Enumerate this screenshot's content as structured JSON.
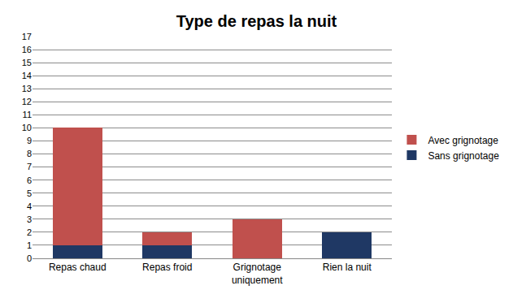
{
  "chart_data": {
    "type": "bar",
    "title": "Type de repas la nuit",
    "categories": [
      "Repas chaud",
      "Repas froid",
      "Grignotage uniquement",
      "Rien la nuit"
    ],
    "series": [
      {
        "name": "Sans grignotage",
        "color": "#1f3864",
        "values": [
          1,
          1,
          0,
          2
        ]
      },
      {
        "name": "Avec grignotage",
        "color": "#c0504d",
        "values": [
          9,
          1,
          3,
          0
        ]
      }
    ],
    "stacked": true,
    "ylim": [
      0,
      17
    ],
    "yticks": [
      0,
      1,
      2,
      3,
      4,
      5,
      6,
      7,
      8,
      9,
      10,
      11,
      12,
      13,
      14,
      15,
      16,
      17
    ],
    "grid": true,
    "legend": "right"
  }
}
